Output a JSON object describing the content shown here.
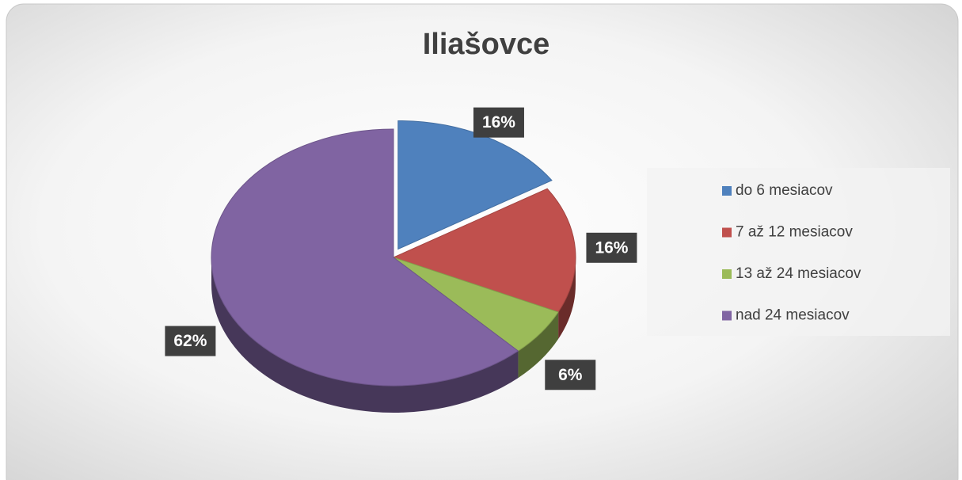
{
  "chart_data": {
    "type": "pie",
    "title": "Iliašovce",
    "categories": [
      "do 6 mesiacov",
      "7 až 12 mesiacov",
      "13 až 24 mesiacov",
      "nad 24 mesiacov"
    ],
    "values": [
      16,
      16,
      6,
      62
    ],
    "value_labels": [
      "16%",
      "16%",
      "6%",
      "62%"
    ],
    "colors": [
      "#4f81bd",
      "#c0504d",
      "#9bbb59",
      "#8064a2"
    ],
    "legend": "right"
  }
}
